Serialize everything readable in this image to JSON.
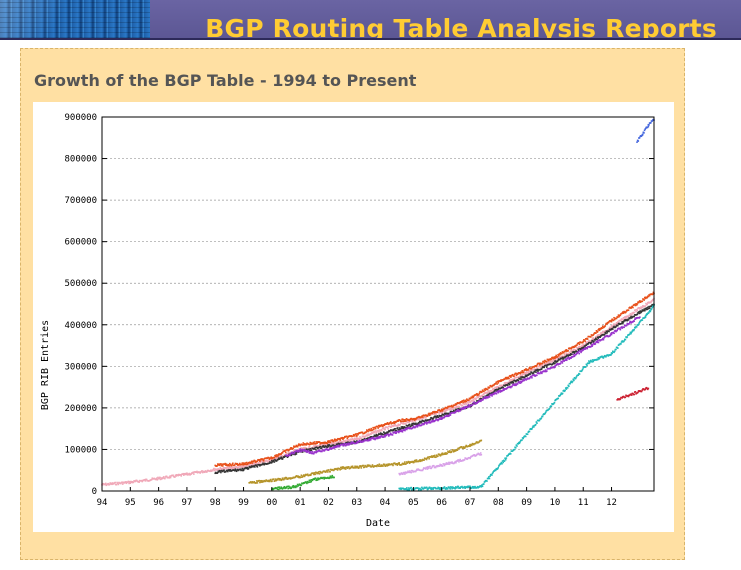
{
  "header": {
    "title": "BGP Routing Table Analysis Reports"
  },
  "panel": {
    "title": "Growth of the BGP Table - 1994 to Present"
  },
  "chart_data": {
    "type": "scatter",
    "xlabel": "Date",
    "ylabel": "BGP RIB Entries",
    "x_ticks": [
      "94",
      "95",
      "96",
      "97",
      "98",
      "99",
      "00",
      "01",
      "02",
      "03",
      "04",
      "05",
      "06",
      "07",
      "08",
      "09",
      "10",
      "11",
      "12"
    ],
    "y_ticks": [
      0,
      100000,
      200000,
      300000,
      400000,
      500000,
      600000,
      700000,
      800000,
      900000
    ],
    "y_tick_labels": [
      "0",
      "100000",
      "200000",
      "300000",
      "400000",
      "500000",
      "600000",
      "700000",
      "800000",
      "900000"
    ],
    "xlim": [
      1994,
      2013.5
    ],
    "ylim": [
      0,
      900000
    ],
    "grid": true,
    "series": [
      {
        "color": "#f0a8b8",
        "points": [
          [
            1994.0,
            15000
          ],
          [
            1995.0,
            21000
          ],
          [
            1996.0,
            30000
          ],
          [
            1997.0,
            40000
          ],
          [
            1998.0,
            52000
          ],
          [
            1999.0,
            58000
          ],
          [
            2000.0,
            75000
          ],
          [
            2001.0,
            100000
          ],
          [
            2002.0,
            112000
          ],
          [
            2003.0,
            125000
          ],
          [
            2004.0,
            150000
          ],
          [
            2005.0,
            170000
          ],
          [
            2006.0,
            190000
          ],
          [
            2007.0,
            215000
          ],
          [
            2008.0,
            250000
          ],
          [
            2009.0,
            285000
          ],
          [
            2010.0,
            315000
          ],
          [
            2011.0,
            350000
          ],
          [
            2012.0,
            395000
          ],
          [
            2013.0,
            440000
          ],
          [
            2013.5,
            460000
          ]
        ]
      },
      {
        "color": "#e8501a",
        "points": [
          [
            1998.0,
            62000
          ],
          [
            1999.0,
            65000
          ],
          [
            2000.0,
            80000
          ],
          [
            2001.0,
            112000
          ],
          [
            2002.0,
            118000
          ],
          [
            2003.0,
            135000
          ],
          [
            2004.0,
            160000
          ],
          [
            2004.6,
            170000
          ],
          [
            2005.0,
            172000
          ],
          [
            2006.0,
            195000
          ],
          [
            2007.0,
            222000
          ],
          [
            2008.0,
            262000
          ],
          [
            2009.0,
            292000
          ],
          [
            2010.0,
            322000
          ],
          [
            2011.0,
            360000
          ],
          [
            2012.0,
            410000
          ],
          [
            2013.0,
            455000
          ],
          [
            2013.5,
            478000
          ]
        ]
      },
      {
        "color": "#333333",
        "points": [
          [
            1998.0,
            45000
          ],
          [
            1999.0,
            52000
          ],
          [
            2000.0,
            70000
          ],
          [
            2001.0,
            95000
          ],
          [
            2002.0,
            108000
          ],
          [
            2003.0,
            118000
          ],
          [
            2004.0,
            140000
          ],
          [
            2005.0,
            160000
          ],
          [
            2006.0,
            182000
          ],
          [
            2007.0,
            205000
          ],
          [
            2008.0,
            245000
          ],
          [
            2009.0,
            278000
          ],
          [
            2010.0,
            310000
          ],
          [
            2011.0,
            345000
          ],
          [
            2012.0,
            390000
          ],
          [
            2013.0,
            430000
          ],
          [
            2013.5,
            448000
          ]
        ]
      },
      {
        "color": "#9933cc",
        "points": [
          [
            2000.5,
            85000
          ],
          [
            2001.0,
            98000
          ],
          [
            2001.5,
            92000
          ],
          [
            2002.5,
            110000
          ],
          [
            2004.0,
            132000
          ],
          [
            2006.0,
            175000
          ],
          [
            2008.0,
            238000
          ],
          [
            2010.0,
            300000
          ],
          [
            2012.0,
            378000
          ],
          [
            2013.0,
            420000
          ]
        ]
      },
      {
        "color": "#b5942a",
        "points": [
          [
            1999.2,
            20000
          ],
          [
            2000.0,
            25000
          ],
          [
            2001.0,
            35000
          ],
          [
            2002.5,
            55000
          ],
          [
            2004.5,
            65000
          ],
          [
            2005.0,
            70000
          ],
          [
            2006.0,
            88000
          ],
          [
            2007.0,
            110000
          ],
          [
            2007.4,
            120000
          ]
        ]
      },
      {
        "color": "#d8a0e8",
        "points": [
          [
            2004.5,
            40000
          ],
          [
            2005.5,
            55000
          ],
          [
            2006.5,
            70000
          ],
          [
            2007.4,
            90000
          ]
        ]
      },
      {
        "color": "#33aa33",
        "points": [
          [
            2000.0,
            5000
          ],
          [
            2000.8,
            10000
          ],
          [
            2001.5,
            28000
          ],
          [
            2002.2,
            35000
          ]
        ]
      },
      {
        "color": "#22bbbb",
        "points": [
          [
            2004.5,
            5000
          ],
          [
            2005.5,
            6000
          ],
          [
            2006.5,
            8000
          ],
          [
            2007.4,
            10000
          ],
          [
            2011.2,
            310000
          ],
          [
            2012.0,
            330000
          ],
          [
            2013.2,
            420000
          ],
          [
            2013.5,
            445000
          ]
        ]
      },
      {
        "color": "#cc2233",
        "points": [
          [
            2012.2,
            220000
          ],
          [
            2012.6,
            230000
          ],
          [
            2013.0,
            240000
          ],
          [
            2013.3,
            248000
          ]
        ]
      },
      {
        "color": "#4466dd",
        "points": [
          [
            2012.9,
            840000
          ],
          [
            2013.1,
            860000
          ],
          [
            2013.3,
            880000
          ],
          [
            2013.5,
            895000
          ]
        ]
      }
    ]
  }
}
